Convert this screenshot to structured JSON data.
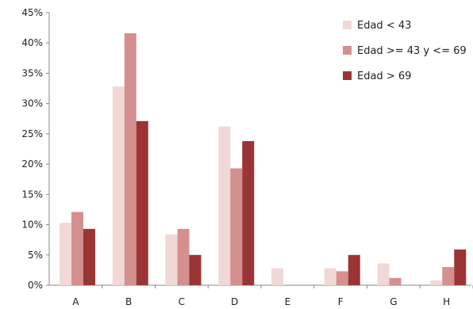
{
  "chart_data": {
    "type": "bar",
    "categories": [
      "A",
      "B",
      "C",
      "D",
      "E",
      "F",
      "G",
      "H"
    ],
    "y_tick_labels": [
      "0%",
      "5%",
      "10%",
      "15%",
      "20%",
      "25%",
      "30%",
      "35%",
      "40%",
      "45%"
    ],
    "ylim": [
      0,
      45
    ],
    "grid": false,
    "legend_position": "top-right",
    "series": [
      {
        "name": "Edad < 43",
        "color": "#f2d7d7",
        "values": [
          10.3,
          32.8,
          8.4,
          26.2,
          2.8,
          2.8,
          3.6,
          0.8
        ]
      },
      {
        "name": "Edad >= 43 y <= 69",
        "color": "#d48f8f",
        "values": [
          12.1,
          41.6,
          9.3,
          19.3,
          0,
          2.3,
          1.2,
          3.0
        ]
      },
      {
        "name": "Edad > 69",
        "color": "#9b3535",
        "values": [
          9.3,
          27.1,
          5.0,
          23.8,
          0,
          5.0,
          0,
          5.9
        ]
      }
    ]
  }
}
